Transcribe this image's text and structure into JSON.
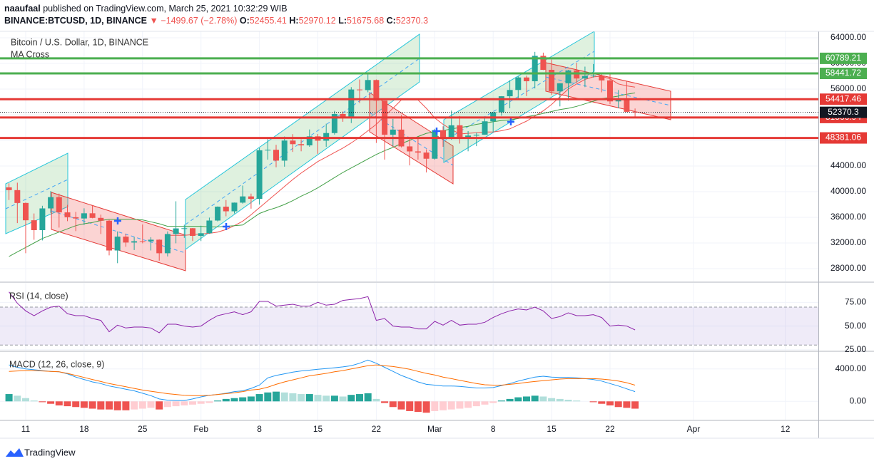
{
  "header": {
    "user": "naaufaal",
    "published": "published on TradingView.com, March 25, 2021 10:32:29 WIB",
    "symbol": "BINANCE:BTCUSD, 1D, BINANCE",
    "change": "▼ −1499.67 (−2.78%)",
    "ohlc_labels": [
      "O:",
      "H:",
      "L:",
      "C:"
    ]
  },
  "footer": {
    "brand": "TradingView"
  },
  "chart_data": [
    {
      "type": "candlestick",
      "title": "Bitcoin / U.S. Dollar, 1D, BINANCE",
      "subtitle": "MA Cross",
      "x": [
        "01-09",
        "01-10",
        "01-11",
        "01-12",
        "01-13",
        "01-14",
        "01-15",
        "01-16",
        "01-17",
        "01-18",
        "01-19",
        "01-20",
        "01-21",
        "01-22",
        "01-23",
        "01-24",
        "01-25",
        "01-26",
        "01-27",
        "01-28",
        "01-29",
        "01-30",
        "01-31",
        "02-01",
        "02-02",
        "02-03",
        "02-04",
        "02-05",
        "02-06",
        "02-07",
        "02-08",
        "02-09",
        "02-10",
        "02-11",
        "02-12",
        "02-13",
        "02-14",
        "02-15",
        "02-16",
        "02-17",
        "02-18",
        "02-19",
        "02-20",
        "02-21",
        "02-22",
        "02-23",
        "02-24",
        "02-25",
        "02-26",
        "02-27",
        "02-28",
        "03-01",
        "03-02",
        "03-03",
        "03-04",
        "03-05",
        "03-06",
        "03-07",
        "03-08",
        "03-09",
        "03-10",
        "03-11",
        "03-12",
        "03-13",
        "03-14",
        "03-15",
        "03-16",
        "03-17",
        "03-18",
        "03-19",
        "03-20",
        "03-21",
        "03-22",
        "03-23",
        "03-24",
        "03-25"
      ],
      "open": [
        40670,
        40240,
        38240,
        35540,
        34000,
        37390,
        39150,
        36770,
        36010,
        35820,
        36630,
        35910,
        35470,
        30830,
        32990,
        32070,
        32270,
        32250,
        32510,
        30400,
        33400,
        34270,
        34300,
        33110,
        33520,
        35500,
        37660,
        36940,
        38290,
        39260,
        38880,
        46450,
        46530,
        44840,
        47970,
        47410,
        47220,
        48630,
        47950,
        49140,
        52120,
        51580,
        55930,
        55840,
        57410,
        54200,
        48880,
        49680,
        47060,
        46280,
        46100,
        45140,
        49590,
        48440,
        50350,
        48370,
        48750,
        48880,
        50970,
        52380,
        54880,
        55860,
        57810,
        57220,
        61180,
        59000,
        55650,
        56900,
        58910,
        57650,
        58030,
        58100,
        57350,
        54080,
        54340,
        52455.41
      ],
      "high": [
        41300,
        41400,
        38300,
        36600,
        37800,
        40100,
        39700,
        37950,
        36850,
        37400,
        37850,
        36420,
        35600,
        33800,
        33450,
        32950,
        34880,
        32900,
        32560,
        33800,
        38500,
        34850,
        34340,
        34700,
        35950,
        37700,
        38700,
        38310,
        40950,
        39700,
        46800,
        48200,
        47300,
        48600,
        48970,
        48150,
        49700,
        49000,
        50600,
        52600,
        52500,
        56300,
        57500,
        58350,
        57500,
        54200,
        51350,
        51950,
        48400,
        48400,
        46600,
        49800,
        50200,
        52650,
        51800,
        49450,
        49200,
        51450,
        52400,
        54900,
        57390,
        58000,
        58100,
        61800,
        61680,
        60600,
        56900,
        58980,
        60100,
        59500,
        59900,
        58600,
        58400,
        55850,
        57200,
        52970.12
      ],
      "low": [
        38700,
        35100,
        30400,
        32500,
        32400,
        36700,
        34400,
        35400,
        33850,
        34800,
        35850,
        33400,
        30070,
        28850,
        31400,
        30900,
        31950,
        30840,
        29240,
        29900,
        31950,
        32800,
        32300,
        32300,
        33420,
        35360,
        36160,
        36600,
        38140,
        37350,
        37990,
        45000,
        43800,
        43900,
        46200,
        46300,
        47000,
        45900,
        47000,
        48900,
        50900,
        50700,
        53800,
        55500,
        47600,
        45000,
        47100,
        46900,
        44100,
        45000,
        43000,
        45000,
        47000,
        48100,
        47500,
        46300,
        47100,
        48880,
        49300,
        51850,
        53000,
        54300,
        54900,
        56100,
        58960,
        55100,
        53300,
        54200,
        57000,
        56300,
        57800,
        55500,
        53650,
        53000,
        52400,
        51675.68
      ],
      "close": [
        40240,
        38240,
        35540,
        34000,
        37390,
        39150,
        36770,
        36010,
        35820,
        36630,
        35910,
        35470,
        30830,
        32990,
        32070,
        32270,
        32250,
        32510,
        30400,
        33400,
        34270,
        34300,
        33110,
        33520,
        35500,
        37660,
        36940,
        38290,
        39260,
        38880,
        46450,
        46530,
        44840,
        47970,
        47410,
        47220,
        48630,
        47950,
        49140,
        52120,
        51580,
        55930,
        55840,
        57410,
        54200,
        48880,
        49680,
        47060,
        46280,
        46100,
        45140,
        49590,
        48440,
        50350,
        48370,
        48750,
        48880,
        50970,
        52380,
        54880,
        55860,
        57810,
        57220,
        61180,
        59000,
        55650,
        56900,
        58910,
        57650,
        58030,
        58100,
        57350,
        54080,
        54340,
        52455.41,
        52370.3
      ],
      "up_color": "#26a69a",
      "down_color": "#ef5350",
      "ma_lines": [
        {
          "color": "#ef5350",
          "values": [
            null,
            null,
            null,
            null,
            null,
            null,
            null,
            null,
            null,
            null,
            null,
            null,
            null,
            null,
            null,
            null,
            null,
            null,
            null,
            33200,
            33200,
            33200,
            33300,
            33400,
            33500,
            33700,
            34100,
            34700,
            35400,
            36400,
            37500,
            38600,
            39700,
            40800,
            41900,
            42900,
            43800,
            44700,
            45400,
            46100,
            46800,
            47600,
            48500,
            49500,
            50500,
            51800,
            53000,
            54300,
            54300,
            54300,
            53000,
            51500,
            50500,
            49700,
            49000,
            49100,
            49200,
            49300,
            49300,
            49500,
            49800,
            50400,
            51000,
            51800,
            52600,
            53600,
            54800,
            56000,
            56800,
            57500,
            57900,
            58000,
            57600,
            56800,
            56500,
            56300
          ]
        },
        {
          "color": "#43a047",
          "values": [
            29900,
            30600,
            31300,
            32000,
            32700,
            33200,
            33700,
            34200,
            34700,
            35000,
            35200,
            35500,
            35700,
            35700,
            35700,
            35700,
            35600,
            35300,
            35000,
            34600,
            34600,
            34600,
            34600,
            34600,
            34500,
            34500,
            34600,
            34700,
            34800,
            35700,
            36600,
            37100,
            37500,
            38000,
            38600,
            39300,
            39900,
            40600,
            41400,
            42200,
            43000,
            43700,
            44400,
            45100,
            45800,
            46400,
            46900,
            47500,
            48000,
            48600,
            49100,
            49300,
            49500,
            49800,
            50000,
            50200,
            50500,
            50700,
            50900,
            51100,
            51200,
            51400,
            51700,
            51900,
            52200,
            52500,
            52800,
            53000,
            53300,
            53700,
            54100,
            54500,
            54700,
            54900,
            55200,
            55400
          ]
        }
      ],
      "levels": [
        {
          "value": 60789.21,
          "color": "#4caf50"
        },
        {
          "value": 58441.72,
          "color": "#4caf50"
        },
        {
          "value": 54417.46,
          "color": "#e53935"
        },
        {
          "value": 51566.94,
          "color": "#e53935"
        },
        {
          "value": 48381.06,
          "color": "#e53935"
        }
      ],
      "ylim": [
        26000,
        65000
      ],
      "yticks": [
        {
          "value": 28000,
          "label": "28000.00"
        },
        {
          "value": 32000,
          "label": "32000.00"
        },
        {
          "value": 36000,
          "label": "36000.00"
        },
        {
          "value": 40000,
          "label": "40000.00"
        },
        {
          "value": 44000,
          "label": "44000.00"
        },
        {
          "value": 48000,
          "label": "48000.00"
        },
        {
          "value": 52000,
          "label": "52000.00"
        },
        {
          "value": 56000,
          "label": "56000.00"
        },
        {
          "value": 60000,
          "label": "60000.00"
        },
        {
          "value": 64000,
          "label": "64000.00"
        }
      ],
      "xticks": [
        {
          "value": "01-11",
          "label": "11"
        },
        {
          "value": "01-18",
          "label": "18"
        },
        {
          "value": "01-25",
          "label": "25"
        },
        {
          "value": "02-01",
          "label": "Feb"
        },
        {
          "value": "02-08",
          "label": "8"
        },
        {
          "value": "02-15",
          "label": "15"
        },
        {
          "value": "02-22",
          "label": "22"
        },
        {
          "value": "03-01",
          "label": "Mar"
        },
        {
          "value": "03-08",
          "label": "8"
        },
        {
          "value": "03-15",
          "label": "15"
        },
        {
          "value": "03-22",
          "label": "22"
        },
        {
          "value": "04-01",
          "label": "Apr"
        },
        {
          "value": "04-12",
          "label": "12"
        }
      ],
      "grid": true
    },
    {
      "type": "line",
      "title": "RSI (14, close)",
      "color": "#8e24aa",
      "values": [
        86,
        74,
        66,
        61,
        66,
        70,
        71,
        63,
        61,
        61,
        58,
        56,
        44,
        51,
        48,
        49,
        49,
        48,
        43,
        52,
        52,
        50,
        49,
        50,
        56,
        61,
        63,
        65,
        62,
        65,
        76,
        76,
        71,
        72,
        73,
        71,
        71,
        75,
        72,
        73,
        77,
        78,
        79,
        81,
        56,
        58,
        50,
        49,
        49,
        47,
        47,
        55,
        51,
        56,
        51,
        52,
        52,
        54,
        59,
        63,
        66,
        68,
        67,
        70,
        66,
        58,
        60,
        64,
        61,
        61,
        62,
        59,
        50,
        51,
        50,
        46
      ],
      "band": [
        30,
        70
      ],
      "band_color": "#7e57c2",
      "ylim": [
        24.2,
        95.5
      ],
      "yticks": [
        {
          "value": 25,
          "label": "25.00"
        },
        {
          "value": 50,
          "label": "50.00"
        },
        {
          "value": 75,
          "label": "75.00"
        }
      ]
    },
    {
      "type": "macd",
      "title": "MACD (12, 26, close, 9)",
      "series": [
        {
          "color": "#2196f3",
          "values": [
            4500,
            4200,
            4000,
            3900,
            3800,
            3700,
            3650,
            3400,
            3000,
            2700,
            2400,
            2200,
            1900,
            1700,
            1500,
            1300,
            1000,
            700,
            300,
            150,
            100,
            100,
            300,
            550,
            750,
            850,
            1000,
            1200,
            1300,
            1600,
            2000,
            2900,
            3200,
            3400,
            3600,
            3750,
            3850,
            3950,
            4050,
            4150,
            4250,
            4400,
            4700,
            5100,
            4700,
            4200,
            3700,
            3200,
            2800,
            2400,
            2100,
            2000,
            1900,
            1900,
            1850,
            1750,
            1650,
            1650,
            1700,
            1950,
            2200,
            2500,
            2750,
            3000,
            3100,
            3000,
            2950,
            2950,
            2900,
            2800,
            2700,
            2500,
            2200,
            1900,
            1550,
            1200
          ]
        },
        {
          "color": "#ff6d00",
          "values": [
            3700,
            3750,
            3800,
            3800,
            3750,
            3700,
            3650,
            3450,
            3200,
            2950,
            2700,
            2450,
            2200,
            2000,
            1800,
            1600,
            1400,
            1250,
            1100,
            950,
            850,
            750,
            700,
            700,
            750,
            850,
            950,
            1050,
            1200,
            1400,
            1500,
            1750,
            2100,
            2400,
            2650,
            2900,
            3150,
            3300,
            3450,
            3650,
            3800,
            4000,
            4200,
            4400,
            4500,
            4400,
            4300,
            4150,
            3950,
            3700,
            3450,
            3250,
            3000,
            2800,
            2600,
            2400,
            2200,
            2050,
            2000,
            2000,
            2100,
            2200,
            2350,
            2450,
            2550,
            2650,
            2750,
            2800,
            2800,
            2800,
            2800,
            2750,
            2650,
            2500,
            2300,
            2000
          ]
        }
      ],
      "histogram": {
        "values": [
          900,
          700,
          400,
          100,
          -100,
          -300,
          -500,
          -600,
          -700,
          -800,
          -900,
          -1000,
          -1000,
          -1100,
          -1100,
          -1000,
          -900,
          -800,
          -1000,
          -700,
          -600,
          -500,
          -400,
          -300,
          -200,
          100,
          300,
          400,
          500,
          600,
          900,
          1100,
          1200,
          1100,
          1000,
          900,
          900,
          800,
          700,
          700,
          600,
          800,
          900,
          1000,
          300,
          -200,
          -700,
          -1000,
          -1200,
          -1300,
          -1400,
          -1200,
          -1100,
          -1000,
          -900,
          -800,
          -600,
          -400,
          -200,
          100,
          300,
          500,
          600,
          700,
          600,
          400,
          300,
          200,
          100,
          0,
          -100,
          -300,
          -500,
          -700,
          -800,
          -900
        ],
        "colors": [
          "#26a69a",
          "#b2dfdb",
          "#ef5350",
          "#ffcdd2"
        ]
      },
      "ylim": [
        -2260,
        6090
      ],
      "yticks": [
        {
          "value": 0,
          "label": "0.00"
        },
        {
          "value": 4000,
          "label": "4000.00"
        }
      ]
    }
  ]
}
